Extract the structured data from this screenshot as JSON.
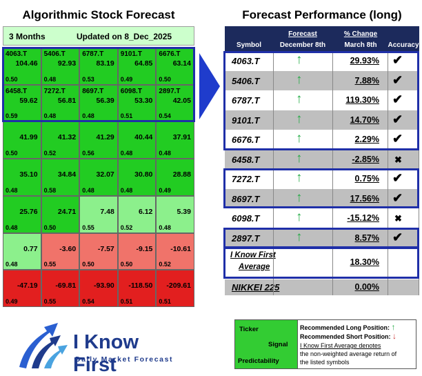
{
  "left_title": "Algorithmic Stock Forecast",
  "right_title": "Forecast Performance (long)",
  "header": {
    "period": "3 Months",
    "updated": "Updated on 8_Dec_2025"
  },
  "colors": {
    "dark_green": "#22cc22",
    "light_green": "#8cf08c",
    "salmon": "#f0736a",
    "red": "#e21f1f",
    "blue": "#1f2fa8"
  },
  "heatmap": [
    [
      {
        "ticker": "4063.T",
        "value": "104.46",
        "prob": "0.50",
        "color": "dark_green"
      },
      {
        "ticker": "5406.T",
        "value": "92.93",
        "prob": "0.48",
        "color": "dark_green"
      },
      {
        "ticker": "6787.T",
        "value": "83.19",
        "prob": "0.53",
        "color": "dark_green"
      },
      {
        "ticker": "9101.T",
        "value": "64.85",
        "prob": "0.49",
        "color": "dark_green"
      },
      {
        "ticker": "6676.T",
        "value": "63.14",
        "prob": "0.50",
        "color": "dark_green"
      }
    ],
    [
      {
        "ticker": "6458.T",
        "value": "59.62",
        "prob": "0.59",
        "color": "dark_green"
      },
      {
        "ticker": "7272.T",
        "value": "56.81",
        "prob": "0.48",
        "color": "dark_green"
      },
      {
        "ticker": "8697.T",
        "value": "56.39",
        "prob": "0.48",
        "color": "dark_green"
      },
      {
        "ticker": "6098.T",
        "value": "53.30",
        "prob": "0.51",
        "color": "dark_green"
      },
      {
        "ticker": "2897.T",
        "value": "42.05",
        "prob": "0.54",
        "color": "dark_green"
      }
    ],
    [
      {
        "ticker": "",
        "value": "41.99",
        "prob": "0.50",
        "color": "dark_green"
      },
      {
        "ticker": "",
        "value": "41.32",
        "prob": "0.52",
        "color": "dark_green"
      },
      {
        "ticker": "",
        "value": "41.29",
        "prob": "0.56",
        "color": "dark_green"
      },
      {
        "ticker": "",
        "value": "40.44",
        "prob": "0.48",
        "color": "dark_green"
      },
      {
        "ticker": "",
        "value": "37.91",
        "prob": "0.48",
        "color": "dark_green"
      }
    ],
    [
      {
        "ticker": "",
        "value": "35.10",
        "prob": "0.48",
        "color": "dark_green"
      },
      {
        "ticker": "",
        "value": "34.84",
        "prob": "0.58",
        "color": "dark_green"
      },
      {
        "ticker": "",
        "value": "32.07",
        "prob": "0.48",
        "color": "dark_green"
      },
      {
        "ticker": "",
        "value": "30.80",
        "prob": "0.48",
        "color": "dark_green"
      },
      {
        "ticker": "",
        "value": "28.88",
        "prob": "0.49",
        "color": "dark_green"
      }
    ],
    [
      {
        "ticker": "",
        "value": "25.76",
        "prob": "0.48",
        "color": "dark_green"
      },
      {
        "ticker": "",
        "value": "24.71",
        "prob": "0.50",
        "color": "dark_green"
      },
      {
        "ticker": "",
        "value": "7.48",
        "prob": "0.55",
        "color": "light_green"
      },
      {
        "ticker": "",
        "value": "6.12",
        "prob": "0.52",
        "color": "light_green"
      },
      {
        "ticker": "",
        "value": "5.39",
        "prob": "0.48",
        "color": "light_green"
      }
    ],
    [
      {
        "ticker": "",
        "value": "0.77",
        "prob": "0.48",
        "color": "light_green"
      },
      {
        "ticker": "",
        "value": "-3.60",
        "prob": "0.55",
        "color": "salmon"
      },
      {
        "ticker": "",
        "value": "-7.57",
        "prob": "0.50",
        "color": "salmon"
      },
      {
        "ticker": "",
        "value": "-9.15",
        "prob": "0.50",
        "color": "salmon"
      },
      {
        "ticker": "",
        "value": "-10.61",
        "prob": "0.52",
        "color": "salmon"
      }
    ],
    [
      {
        "ticker": "",
        "value": "-47.19",
        "prob": "0.49",
        "color": "red"
      },
      {
        "ticker": "",
        "value": "-69.81",
        "prob": "0.55",
        "color": "red"
      },
      {
        "ticker": "",
        "value": "-93.90",
        "prob": "0.54",
        "color": "red"
      },
      {
        "ticker": "",
        "value": "-118.50",
        "prob": "0.51",
        "color": "red"
      },
      {
        "ticker": "",
        "value": "-209.61",
        "prob": "0.51",
        "color": "red"
      }
    ]
  ],
  "table": {
    "col_symbol": "Symbol",
    "col_forecast": "Forecast",
    "col_forecast_date": "December 8th",
    "col_change": "% Change",
    "col_change_date": "March 8th",
    "col_accuracy": "Accuracy",
    "rows": [
      {
        "symbol": "4063.T",
        "change": "29.93%",
        "accuracy": "check"
      },
      {
        "symbol": "5406.T",
        "change": "7.88%",
        "accuracy": "check"
      },
      {
        "symbol": "6787.T",
        "change": "119.30%",
        "accuracy": "check"
      },
      {
        "symbol": "9101.T",
        "change": "14.70%",
        "accuracy": "check"
      },
      {
        "symbol": "6676.T",
        "change": "2.29%",
        "accuracy": "check"
      },
      {
        "symbol": "6458.T",
        "change": "-2.85%",
        "accuracy": "cross"
      },
      {
        "symbol": "7272.T",
        "change": "0.75%",
        "accuracy": "check"
      },
      {
        "symbol": "8697.T",
        "change": "17.56%",
        "accuracy": "check"
      },
      {
        "symbol": "6098.T",
        "change": "-15.12%",
        "accuracy": "cross"
      },
      {
        "symbol": "2897.T",
        "change": "8.57%",
        "accuracy": "check"
      }
    ],
    "average_label_1": "I Know First",
    "average_label_2": "Average",
    "average_value": "18.30%",
    "index_label": "NIKKEI 225",
    "index_value": "0.00%"
  },
  "legend": {
    "ticker": "Ticker",
    "signal": "Signal",
    "predictability": "Predictability",
    "long": "Recommended Long Position:",
    "short": "Recommended Short Position:",
    "note_1": "I Know First Average denotes",
    "note_2": "the non-weighted average return of",
    "note_3": "the listed symbols"
  },
  "logo": {
    "name": "I Know First",
    "tagline": "Daily Market Forecast"
  }
}
